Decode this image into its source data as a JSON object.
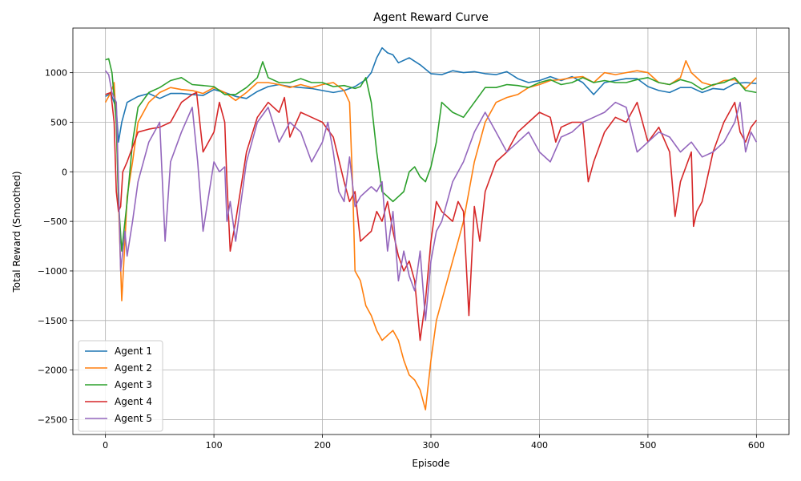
{
  "chart_data": {
    "type": "line",
    "title": "Agent Reward Curve",
    "xlabel": "Episode",
    "ylabel": "Total Reward (Smoothed)",
    "xlim": [
      -30,
      630
    ],
    "ylim": [
      -2650,
      1450
    ],
    "xticks": [
      0,
      100,
      200,
      300,
      400,
      500,
      600
    ],
    "xtick_labels": [
      "0",
      "100",
      "200",
      "300",
      "400",
      "500",
      "600"
    ],
    "yticks": [
      -2500,
      -2000,
      -1500,
      -1000,
      -500,
      0,
      500,
      1000
    ],
    "ytick_labels": [
      "−2500",
      "−2000",
      "−1500",
      "−1000",
      "−500",
      "0",
      "500",
      "1000"
    ],
    "grid": true,
    "legend_position": "lower-left",
    "series": [
      {
        "name": "Agent 1",
        "color": "#1f77b4",
        "x": [
          0,
          5,
          10,
          12,
          15,
          20,
          30,
          40,
          50,
          60,
          70,
          80,
          90,
          100,
          110,
          120,
          130,
          140,
          150,
          160,
          170,
          180,
          190,
          200,
          210,
          220,
          230,
          240,
          245,
          250,
          255,
          260,
          265,
          270,
          280,
          290,
          300,
          310,
          320,
          330,
          340,
          350,
          360,
          370,
          380,
          390,
          400,
          410,
          420,
          430,
          440,
          450,
          460,
          470,
          480,
          490,
          500,
          510,
          520,
          530,
          540,
          550,
          560,
          570,
          580,
          590,
          600
        ],
        "y": [
          760,
          790,
          640,
          300,
          500,
          700,
          760,
          790,
          740,
          790,
          790,
          780,
          770,
          830,
          800,
          760,
          740,
          810,
          860,
          880,
          860,
          850,
          840,
          820,
          800,
          820,
          860,
          930,
          1000,
          1150,
          1250,
          1200,
          1180,
          1100,
          1150,
          1080,
          990,
          980,
          1020,
          1000,
          1010,
          990,
          980,
          1010,
          940,
          900,
          920,
          960,
          920,
          960,
          900,
          780,
          900,
          920,
          940,
          940,
          860,
          820,
          800,
          850,
          850,
          800,
          840,
          830,
          890,
          900,
          890
        ]
      },
      {
        "name": "Agent 2",
        "color": "#ff7f0e",
        "x": [
          0,
          5,
          8,
          10,
          12,
          15,
          18,
          20,
          25,
          30,
          40,
          50,
          60,
          70,
          80,
          90,
          100,
          110,
          120,
          130,
          140,
          150,
          160,
          170,
          180,
          190,
          200,
          210,
          220,
          225,
          228,
          230,
          235,
          240,
          245,
          250,
          255,
          260,
          265,
          270,
          275,
          280,
          285,
          290,
          295,
          300,
          305,
          310,
          315,
          320,
          325,
          330,
          335,
          340,
          350,
          360,
          370,
          380,
          390,
          400,
          410,
          420,
          430,
          440,
          450,
          460,
          470,
          480,
          490,
          500,
          510,
          520,
          530,
          535,
          540,
          550,
          560,
          570,
          580,
          590,
          600
        ],
        "y": [
          700,
          800,
          900,
          500,
          -300,
          -1300,
          -700,
          -250,
          100,
          500,
          700,
          800,
          850,
          830,
          820,
          790,
          850,
          800,
          720,
          800,
          900,
          900,
          880,
          850,
          880,
          850,
          880,
          900,
          820,
          700,
          -200,
          -1000,
          -1100,
          -1350,
          -1450,
          -1600,
          -1700,
          -1650,
          -1600,
          -1700,
          -1900,
          -2050,
          -2100,
          -2200,
          -2400,
          -1900,
          -1500,
          -1300,
          -1100,
          -900,
          -700,
          -500,
          -200,
          100,
          500,
          700,
          750,
          780,
          850,
          880,
          920,
          930,
          950,
          960,
          900,
          1000,
          980,
          1000,
          1020,
          1000,
          900,
          880,
          950,
          1120,
          1000,
          900,
          870,
          920,
          930,
          840,
          950
        ]
      },
      {
        "name": "Agent 3",
        "color": "#2ca02c",
        "x": [
          0,
          3,
          6,
          10,
          12,
          15,
          20,
          25,
          30,
          40,
          50,
          60,
          70,
          80,
          90,
          100,
          110,
          120,
          130,
          140,
          145,
          150,
          160,
          170,
          180,
          190,
          200,
          210,
          220,
          230,
          235,
          240,
          245,
          250,
          255,
          260,
          265,
          270,
          275,
          280,
          285,
          290,
          295,
          300,
          305,
          310,
          320,
          330,
          340,
          350,
          360,
          370,
          380,
          390,
          400,
          410,
          420,
          430,
          440,
          450,
          460,
          470,
          480,
          490,
          500,
          510,
          520,
          530,
          540,
          550,
          560,
          570,
          580,
          590,
          600
        ],
        "y": [
          1130,
          1140,
          1000,
          500,
          -300,
          -800,
          -300,
          300,
          650,
          800,
          850,
          920,
          950,
          880,
          870,
          860,
          780,
          780,
          850,
          950,
          1110,
          950,
          900,
          900,
          940,
          900,
          900,
          860,
          870,
          840,
          860,
          950,
          700,
          200,
          -200,
          -250,
          -300,
          -250,
          -200,
          0,
          50,
          -50,
          -100,
          50,
          300,
          700,
          600,
          550,
          700,
          850,
          850,
          880,
          870,
          850,
          900,
          930,
          880,
          900,
          950,
          900,
          920,
          900,
          900,
          930,
          950,
          900,
          880,
          930,
          900,
          830,
          880,
          900,
          950,
          820,
          800
        ]
      },
      {
        "name": "Agent 4",
        "color": "#d62728",
        "x": [
          0,
          5,
          8,
          10,
          12,
          14,
          16,
          20,
          25,
          30,
          40,
          50,
          60,
          70,
          80,
          84,
          90,
          100,
          105,
          110,
          112,
          115,
          120,
          130,
          140,
          150,
          160,
          165,
          170,
          180,
          190,
          200,
          210,
          220,
          225,
          230,
          235,
          240,
          245,
          250,
          255,
          260,
          265,
          270,
          275,
          280,
          285,
          290,
          295,
          300,
          305,
          310,
          320,
          325,
          330,
          335,
          340,
          345,
          350,
          360,
          370,
          380,
          390,
          400,
          410,
          415,
          420,
          430,
          440,
          445,
          450,
          460,
          470,
          480,
          490,
          500,
          510,
          520,
          525,
          530,
          540,
          542,
          545,
          550,
          560,
          570,
          580,
          585,
          590,
          595,
          600
        ],
        "y": [
          780,
          800,
          500,
          -200,
          -400,
          -350,
          0,
          100,
          250,
          400,
          430,
          450,
          500,
          700,
          780,
          800,
          200,
          400,
          700,
          500,
          -100,
          -800,
          -500,
          200,
          550,
          700,
          600,
          750,
          350,
          600,
          550,
          500,
          350,
          -100,
          -300,
          -200,
          -700,
          -650,
          -600,
          -400,
          -500,
          -300,
          -600,
          -850,
          -1000,
          -900,
          -1100,
          -1700,
          -1300,
          -700,
          -300,
          -400,
          -500,
          -300,
          -400,
          -1450,
          -350,
          -700,
          -200,
          100,
          200,
          400,
          500,
          600,
          550,
          300,
          450,
          500,
          500,
          -100,
          100,
          400,
          550,
          500,
          700,
          300,
          450,
          200,
          -450,
          -100,
          200,
          -550,
          -400,
          -300,
          200,
          500,
          700,
          400,
          300,
          450,
          520
        ]
      },
      {
        "name": "Agent 5",
        "color": "#9467bd",
        "x": [
          0,
          3,
          6,
          10,
          12,
          14,
          16,
          18,
          20,
          25,
          30,
          40,
          50,
          55,
          60,
          70,
          80,
          85,
          90,
          100,
          105,
          110,
          112,
          115,
          120,
          130,
          140,
          150,
          160,
          170,
          180,
          190,
          200,
          205,
          210,
          215,
          220,
          225,
          230,
          235,
          240,
          245,
          250,
          255,
          260,
          265,
          270,
          275,
          280,
          285,
          290,
          295,
          300,
          305,
          310,
          315,
          320,
          330,
          340,
          350,
          360,
          370,
          380,
          390,
          400,
          410,
          420,
          430,
          440,
          450,
          460,
          470,
          480,
          490,
          500,
          510,
          520,
          530,
          540,
          550,
          560,
          570,
          580,
          585,
          590,
          595,
          600
        ],
        "y": [
          1020,
          980,
          800,
          700,
          -100,
          -1000,
          -800,
          -600,
          -850,
          -500,
          -100,
          300,
          500,
          -700,
          100,
          400,
          650,
          100,
          -600,
          100,
          0,
          50,
          -500,
          -300,
          -700,
          100,
          500,
          650,
          300,
          500,
          400,
          100,
          300,
          500,
          200,
          -200,
          -300,
          150,
          -350,
          -250,
          -200,
          -150,
          -200,
          -100,
          -800,
          -400,
          -1100,
          -800,
          -1050,
          -1200,
          -800,
          -1500,
          -900,
          -600,
          -500,
          -300,
          -100,
          100,
          400,
          600,
          400,
          200,
          300,
          400,
          200,
          100,
          350,
          400,
          500,
          550,
          600,
          700,
          650,
          200,
          300,
          400,
          350,
          200,
          300,
          150,
          200,
          300,
          500,
          700,
          200,
          400,
          300
        ]
      }
    ]
  }
}
